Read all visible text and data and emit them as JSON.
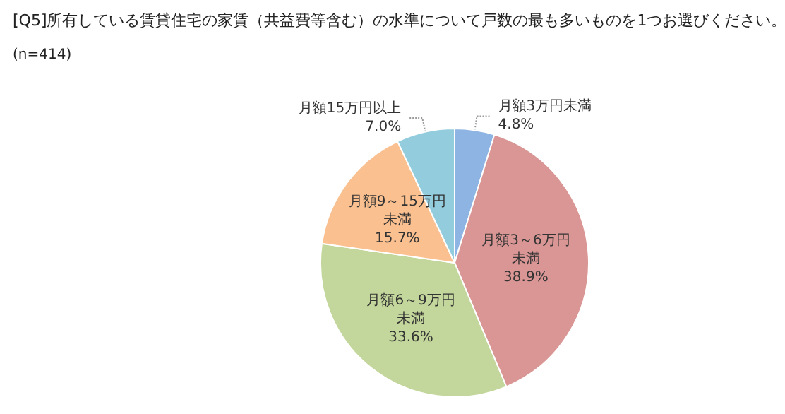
{
  "chart_data": {
    "type": "pie",
    "title": "[Q5]所有している賃貸住宅の家賃（共益費等含む）の水準について戸数の最も多いものを1つお選びください。",
    "subtitle": "(n=414)",
    "categories": [
      "月額3万円未満",
      "月額3～6万円未満",
      "月額6～9万円未満",
      "月額9～15万円未満",
      "月額15万円以上"
    ],
    "values": [
      4.8,
      38.9,
      33.6,
      15.7,
      7.0
    ],
    "value_labels": [
      "4.8%",
      "38.9%",
      "33.6%",
      "15.7%",
      "7.0%"
    ],
    "colors": [
      "#8eb4e3",
      "#d99694",
      "#c3d69b",
      "#fac090",
      "#93cddd"
    ],
    "legend": false
  }
}
